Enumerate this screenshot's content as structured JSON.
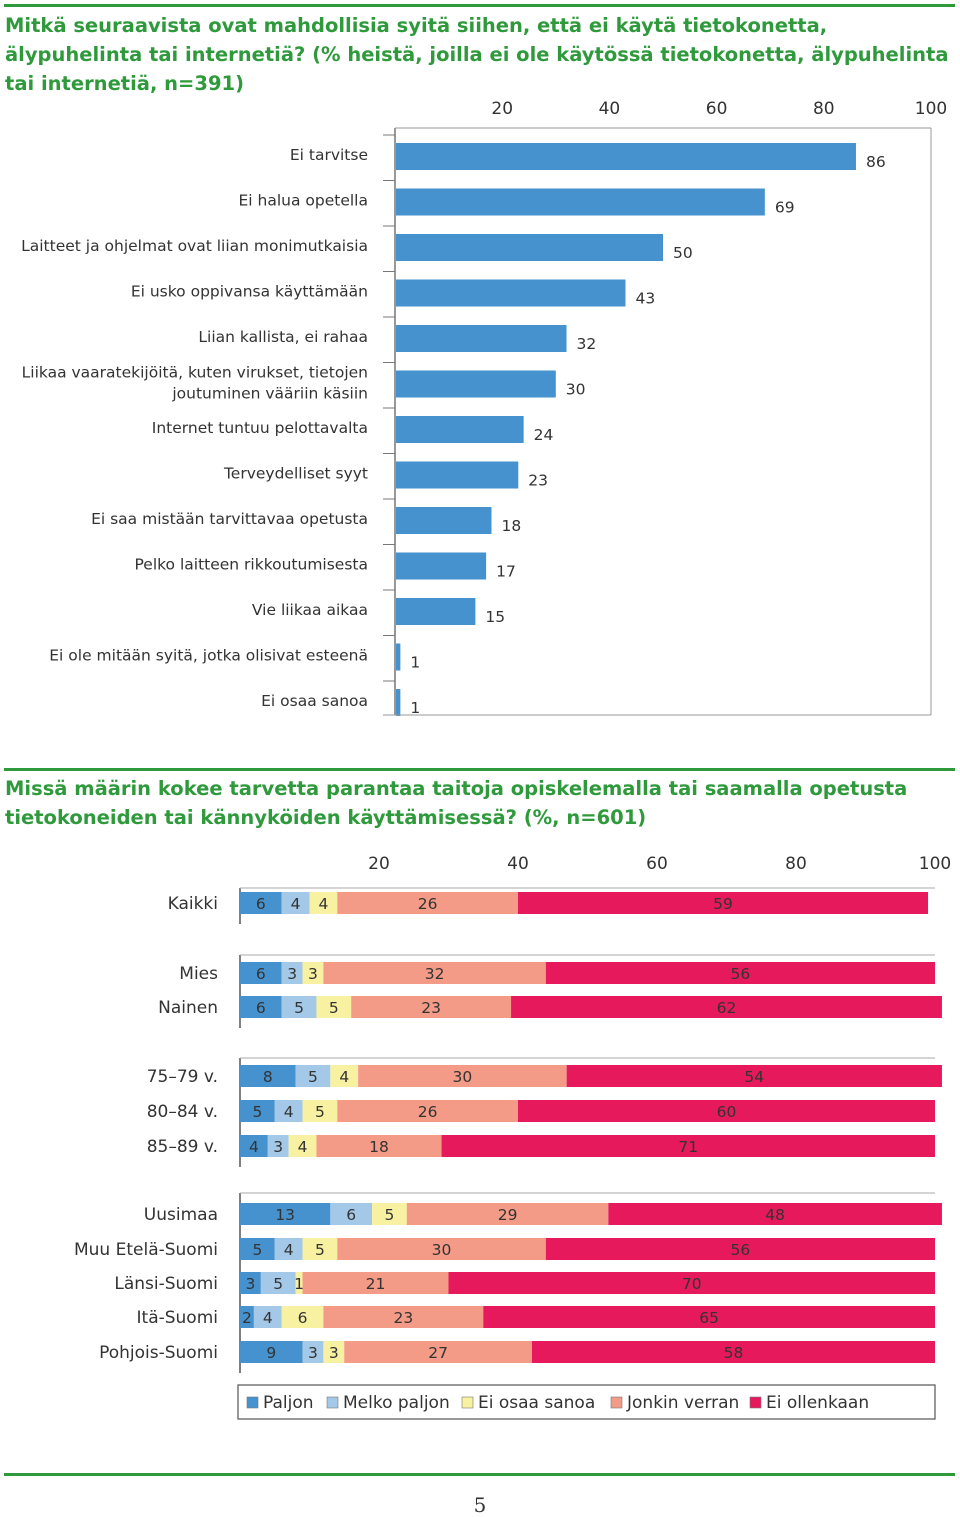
{
  "colors": {
    "title": "#2f9a3c",
    "bar": "#4592cf",
    "paljon": "#4592cf",
    "melko": "#a4c8e8",
    "eos": "#f8f1a1",
    "jonkin": "#f39b86",
    "eiollenkaan": "#e6195d"
  },
  "chart1_title": "Mitkä seuraavista ovat mahdollisia syitä siihen, että ei käytä tietokonetta, älypuhelinta tai internetiä? (% heistä, joilla ei ole käytössä tietokonetta, älypuhelinta tai internetiä, n=391)",
  "chart2_title": "Missä määrin kokee tarvetta parantaa taitoja opiskelemalla tai saamalla opetusta tietokoneiden tai kännyköiden käyttämisessä? (%, n=601)",
  "page_number": "5",
  "chart_data": [
    {
      "type": "bar",
      "orientation": "horizontal",
      "title": "Mitkä seuraavista ovat mahdollisia syitä siihen, että ei käytä tietokonetta, älypuhelinta tai internetiä?",
      "xlim": [
        0,
        100
      ],
      "xticks": [
        "20",
        "40",
        "60",
        "80",
        "100"
      ],
      "categories": [
        [
          "Ei tarvitse"
        ],
        [
          "Ei halua opetella"
        ],
        [
          "Laitteet ja ohjelmat ovat liian monimutkaisia"
        ],
        [
          "Ei usko oppivansa käyttämään"
        ],
        [
          "Liian kallista, ei rahaa"
        ],
        [
          "Liikaa vaaratekijöitä, kuten virukset, tietojen",
          "joutuminen vääriin käsiin"
        ],
        [
          "Internet tuntuu pelottavalta"
        ],
        [
          "Terveydelliset syyt"
        ],
        [
          "Ei saa mistään tarvittavaa opetusta"
        ],
        [
          "Pelko laitteen rikkoutumisesta"
        ],
        [
          "Vie liikaa aikaa"
        ],
        [
          "Ei ole mitään syitä, jotka olisivat esteenä"
        ],
        [
          "Ei osaa sanoa"
        ]
      ],
      "values": [
        86,
        69,
        50,
        43,
        32,
        30,
        24,
        23,
        18,
        17,
        15,
        1,
        1
      ]
    },
    {
      "type": "bar",
      "orientation": "horizontal",
      "stacked": true,
      "title": "Missä määrin kokee tarvetta parantaa taitoja opiskelemalla tai saamalla opetusta tietokoneiden tai kännyköiden käyttämisessä?",
      "xlim": [
        0,
        100
      ],
      "xticks": [
        "20",
        "40",
        "60",
        "80",
        "100"
      ],
      "legend": [
        "Paljon",
        "Melko paljon",
        "Ei osaa sanoa",
        "Jonkin verran",
        "Ei ollenkaan"
      ],
      "groups": [
        {
          "rows": [
            {
              "label": "Kaikki",
              "values": [
                6,
                4,
                4,
                26,
                59
              ]
            }
          ]
        },
        {
          "rows": [
            {
              "label": "Mies",
              "values": [
                6,
                3,
                3,
                32,
                56
              ]
            },
            {
              "label": "Nainen",
              "values": [
                6,
                5,
                5,
                23,
                62
              ]
            }
          ]
        },
        {
          "rows": [
            {
              "label": "75–79 v.",
              "values": [
                8,
                5,
                4,
                30,
                54
              ]
            },
            {
              "label": "80–84 v.",
              "values": [
                5,
                4,
                5,
                26,
                60
              ]
            },
            {
              "label": "85–89 v.",
              "values": [
                4,
                3,
                4,
                18,
                71
              ]
            }
          ]
        },
        {
          "rows": [
            {
              "label": "Uusimaa",
              "values": [
                13,
                6,
                5,
                29,
                48
              ]
            },
            {
              "label": "Muu Etelä-Suomi",
              "values": [
                5,
                4,
                5,
                30,
                56
              ]
            },
            {
              "label": "Länsi-Suomi",
              "values": [
                3,
                5,
                1,
                21,
                70
              ]
            },
            {
              "label": "Itä-Suomi",
              "values": [
                2,
                4,
                6,
                23,
                65
              ]
            },
            {
              "label": "Pohjois-Suomi",
              "values": [
                9,
                3,
                3,
                27,
                58
              ]
            }
          ]
        }
      ]
    }
  ]
}
